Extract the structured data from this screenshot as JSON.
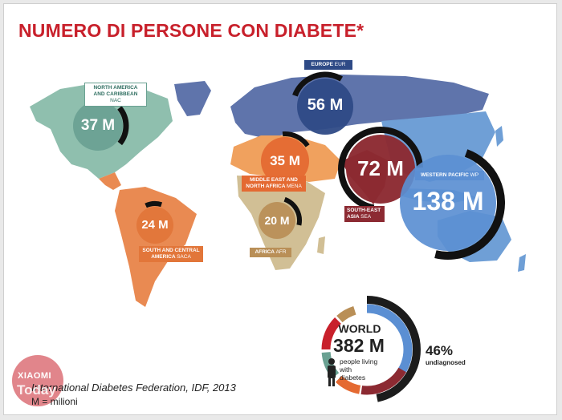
{
  "title": "NUMERO DI PERSONE CON DIABETE*",
  "colors": {
    "title": "#c8202b",
    "north_america": "#8fbfae",
    "south_america": "#e98a52",
    "europe": "#5f74ab",
    "mena": "#f0a15e",
    "africa": "#d1bf95",
    "sea": "#8c2a32",
    "western_pacific": "#6f9fd6"
  },
  "regions": [
    {
      "key": "nac",
      "name": "NORTH AMERICA AND CARIBBEAN",
      "code": "NAC",
      "value": "37 M"
    },
    {
      "key": "saca",
      "name": "SOUTH AND CENTRAL AMERICA",
      "code": "SACA",
      "value": "24 M"
    },
    {
      "key": "eur",
      "name": "EUROPE",
      "code": "EUR",
      "value": "56 M"
    },
    {
      "key": "mena",
      "name": "MIDDLE EAST AND NORTH AFRICA",
      "code": "MENA",
      "value": "35 M"
    },
    {
      "key": "afr",
      "name": "AFRICA",
      "code": "AFR",
      "value": "20 M"
    },
    {
      "key": "sea",
      "name": "SOUTH-EAST ASIA",
      "code": "SEA",
      "value": "72 M"
    },
    {
      "key": "wp",
      "name": "WESTERN PACIFIC",
      "code": "WP",
      "value": "138 M"
    }
  ],
  "world": {
    "label": "WORLD",
    "value": "382 M",
    "desc_line1": "people living",
    "desc_line2": "with",
    "desc_line3": "diabetes",
    "undiagnosed_pct": "46%",
    "undiagnosed_label": "undiagnosed"
  },
  "source": "International Diabetes Federation, IDF, 2013",
  "units_note": "M = milioni",
  "watermark": {
    "line1": "XIAOMI",
    "line2": "Today"
  }
}
